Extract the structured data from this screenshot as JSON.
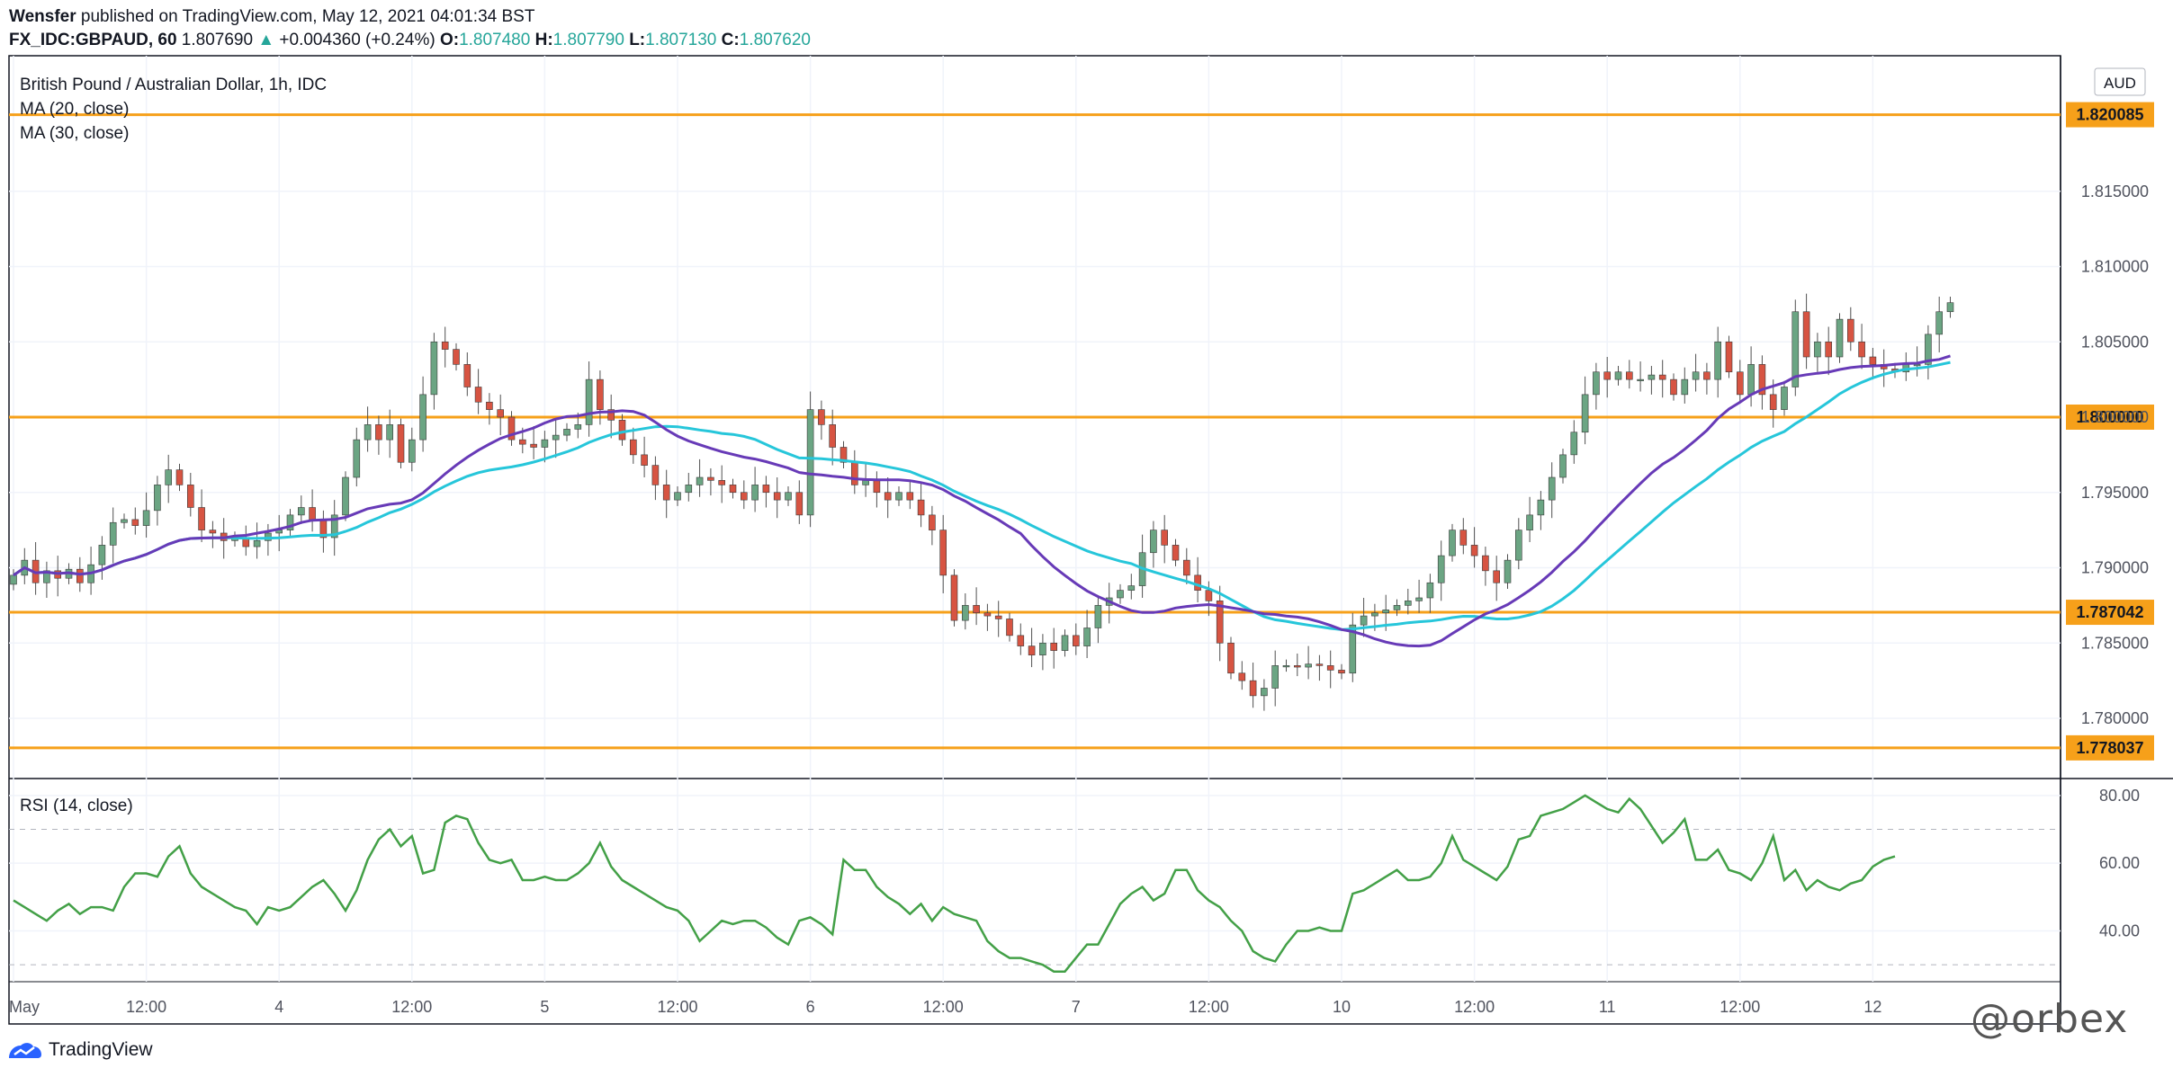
{
  "header": {
    "author": "Wensfer",
    "published_text": "published on TradingView.com, May 12, 2021 04:01:34 BST",
    "symbol": "FX_IDC:GBPAUD, 60",
    "last": "1.807690",
    "change_arrow": "▲",
    "change": "+0.004360 (+0.24%)",
    "open_label": "O:",
    "open": "1.807480",
    "high_label": "H:",
    "high": "1.807790",
    "low_label": "L:",
    "low": "1.807130",
    "close_label": "C:",
    "close": "1.807620"
  },
  "chart": {
    "legend_title": "British Pound / Australian Dollar, 1h, IDC",
    "ma20_label": "MA (20, close)",
    "ma30_label": "MA (30, close)",
    "currency_badge": "AUD",
    "rsi_label": "RSI (14, close)"
  },
  "footer": {
    "brand": "TradingView",
    "watermark": "@orbex"
  },
  "colors": {
    "up": "#6ba583",
    "down": "#d75442",
    "ma20": "#673ab7",
    "ma30": "#26c6da",
    "rsi": "#43a047",
    "level": "#f6a01a",
    "grid": "#f0f3fa",
    "axis_text": "#50535e"
  },
  "chart_data": [
    {
      "type": "candlestick",
      "title": "British Pound / Australian Dollar, 1h, IDC",
      "ylim": [
        1.776,
        1.824
      ],
      "yticks": [
        "1.780000",
        "1.785000",
        "1.790000",
        "1.795000",
        "1.800000",
        "1.805000",
        "1.810000",
        "1.815000"
      ],
      "xticks": [
        {
          "label": "May",
          "pos": 0
        },
        {
          "label": "12:00",
          "pos": 12
        },
        {
          "label": "4",
          "pos": 24
        },
        {
          "label": "12:00",
          "pos": 36
        },
        {
          "label": "5",
          "pos": 48
        },
        {
          "label": "12:00",
          "pos": 60
        },
        {
          "label": "6",
          "pos": 72
        },
        {
          "label": "12:00",
          "pos": 84
        },
        {
          "label": "7",
          "pos": 96
        },
        {
          "label": "12:00",
          "pos": 108
        },
        {
          "label": "10",
          "pos": 120
        },
        {
          "label": "12:00",
          "pos": 132
        },
        {
          "label": "11",
          "pos": 144
        },
        {
          "label": "12:00",
          "pos": 156
        },
        {
          "label": "12",
          "pos": 168
        }
      ],
      "levels": [
        {
          "value": 1.820085,
          "label": "1.820085"
        },
        {
          "value": 1.8,
          "label": "1.800000"
        },
        {
          "value": 1.787042,
          "label": "1.787042"
        },
        {
          "value": 1.778037,
          "label": "1.778037"
        }
      ],
      "close": [
        1.7895,
        1.7905,
        1.789,
        1.7898,
        1.7893,
        1.7899,
        1.789,
        1.7902,
        1.7915,
        1.793,
        1.7932,
        1.7928,
        1.7938,
        1.7955,
        1.7965,
        1.7955,
        1.794,
        1.7925,
        1.7923,
        1.7918,
        1.792,
        1.7914,
        1.7918,
        1.7923,
        1.7925,
        1.7935,
        1.794,
        1.7932,
        1.792,
        1.7935,
        1.796,
        1.7985,
        1.7995,
        1.7985,
        1.7995,
        1.797,
        1.7985,
        1.8015,
        1.805,
        1.8045,
        1.8035,
        1.802,
        1.801,
        1.8005,
        1.8,
        1.7985,
        1.7982,
        1.798,
        1.7985,
        1.7988,
        1.7992,
        1.7995,
        1.8025,
        1.8005,
        1.7998,
        1.7985,
        1.7975,
        1.7968,
        1.7955,
        1.7945,
        1.795,
        1.7955,
        1.796,
        1.7958,
        1.7955,
        1.795,
        1.7945,
        1.7955,
        1.795,
        1.7945,
        1.795,
        1.7935,
        1.8005,
        1.7995,
        1.798,
        1.797,
        1.7955,
        1.7958,
        1.795,
        1.7945,
        1.795,
        1.7945,
        1.7935,
        1.7925,
        1.7895,
        1.7865,
        1.7875,
        1.787,
        1.7868,
        1.7866,
        1.7855,
        1.7848,
        1.7842,
        1.785,
        1.7845,
        1.7855,
        1.7848,
        1.786,
        1.7875,
        1.788,
        1.7885,
        1.7888,
        1.791,
        1.7925,
        1.7915,
        1.7905,
        1.7895,
        1.7885,
        1.7878,
        1.785,
        1.783,
        1.7825,
        1.7815,
        1.782,
        1.7835,
        1.7835,
        1.7834,
        1.7836,
        1.7835,
        1.7832,
        1.783,
        1.7862,
        1.7868,
        1.787,
        1.7872,
        1.7875,
        1.7878,
        1.788,
        1.789,
        1.7908,
        1.7925,
        1.7915,
        1.7908,
        1.7898,
        1.789,
        1.7905,
        1.7925,
        1.7935,
        1.7945,
        1.796,
        1.7975,
        1.799,
        1.8015,
        1.803,
        1.8025,
        1.803,
        1.8025,
        1.8025,
        1.8028,
        1.8025,
        1.8015,
        1.8025,
        1.803,
        1.8025,
        1.805,
        1.803,
        1.8015,
        1.8035,
        1.8015,
        1.8005,
        1.802,
        1.807,
        1.804,
        1.805,
        1.804,
        1.8065,
        1.805,
        1.804,
        1.8035,
        1.8032,
        1.803,
        1.8035,
        1.8035,
        1.8055,
        1.807,
        1.8076
      ],
      "series": [
        {
          "name": "MA (20, close)"
        },
        {
          "name": "MA (30, close)"
        }
      ]
    },
    {
      "type": "line",
      "title": "RSI (14, close)",
      "ylim": [
        25,
        85
      ],
      "yticks": [
        "40.00",
        "60.00",
        "80.00"
      ],
      "bands": [
        30,
        70
      ],
      "values": [
        49,
        47,
        45,
        43,
        46,
        48,
        45,
        47,
        47,
        46,
        53,
        57,
        57,
        56,
        62,
        65,
        57,
        53,
        51,
        49,
        47,
        46,
        42,
        47,
        46,
        47,
        50,
        53,
        55,
        51,
        46,
        52,
        61,
        67,
        70,
        65,
        68,
        57,
        58,
        72,
        74,
        73,
        66,
        61,
        60,
        61,
        55,
        55,
        56,
        55,
        55,
        57,
        60,
        66,
        59,
        55,
        53,
        51,
        49,
        47,
        46,
        43,
        37,
        40,
        43,
        42,
        43,
        43,
        41,
        38,
        36,
        43,
        44,
        42,
        39,
        61,
        58,
        58,
        53,
        50,
        48,
        45,
        48,
        43,
        47,
        45,
        44,
        43,
        37,
        34,
        32,
        32,
        31,
        30,
        28,
        28,
        32,
        36,
        36,
        42,
        48,
        51,
        53,
        49,
        51,
        58,
        58,
        52,
        49,
        47,
        43,
        40,
        34,
        32,
        31,
        36,
        40,
        40,
        41,
        40,
        40,
        51,
        52,
        54,
        56,
        58,
        55,
        55,
        56,
        60,
        68,
        61,
        59,
        57,
        55,
        59,
        67,
        68,
        74,
        75,
        76,
        78,
        80,
        78,
        76,
        75,
        79,
        76,
        71,
        66,
        69,
        73,
        61,
        61,
        64,
        58,
        57,
        55,
        60,
        68,
        55,
        58,
        52,
        55,
        53,
        52,
        54,
        55,
        59,
        61,
        62
      ]
    }
  ]
}
